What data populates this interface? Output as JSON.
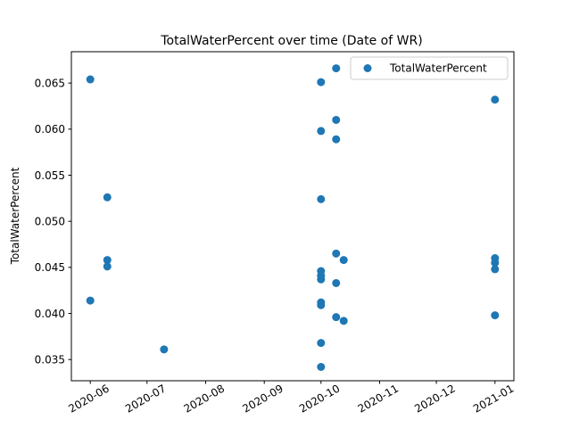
{
  "chart_data": {
    "type": "scatter",
    "title": "TotalWaterPercent over time (Date of WR)",
    "xlabel": "",
    "ylabel": "TotalWaterPercent",
    "xlim": [
      "2020-05-22",
      "2021-01-11"
    ],
    "ylim": [
      0.0327,
      0.0684
    ],
    "x_ticks": [
      "2020-06",
      "2020-07",
      "2020-08",
      "2020-09",
      "2020-10",
      "2020-11",
      "2020-12",
      "2021-01"
    ],
    "y_ticks": [
      0.035,
      0.04,
      0.045,
      0.05,
      0.055,
      0.06,
      0.065
    ],
    "y_tick_labels": [
      "0.035",
      "0.040",
      "0.045",
      "0.050",
      "0.055",
      "0.060",
      "0.065"
    ],
    "legend": {
      "position": "top-right",
      "entries": [
        "TotalWaterPercent"
      ]
    },
    "grid": false,
    "series": [
      {
        "name": "TotalWaterPercent",
        "color": "#1f77b4",
        "points": [
          {
            "x": "2020-06-01",
            "y": 0.0654
          },
          {
            "x": "2020-06-01",
            "y": 0.0414
          },
          {
            "x": "2020-06-10",
            "y": 0.0526
          },
          {
            "x": "2020-06-10",
            "y": 0.0458
          },
          {
            "x": "2020-06-10",
            "y": 0.0451
          },
          {
            "x": "2020-07-10",
            "y": 0.0361
          },
          {
            "x": "2020-10-01",
            "y": 0.0651
          },
          {
            "x": "2020-10-01",
            "y": 0.0598
          },
          {
            "x": "2020-10-01",
            "y": 0.0524
          },
          {
            "x": "2020-10-01",
            "y": 0.0446
          },
          {
            "x": "2020-10-01",
            "y": 0.0441
          },
          {
            "x": "2020-10-01",
            "y": 0.0437
          },
          {
            "x": "2020-10-01",
            "y": 0.0412
          },
          {
            "x": "2020-10-01",
            "y": 0.0409
          },
          {
            "x": "2020-10-01",
            "y": 0.0368
          },
          {
            "x": "2020-10-01",
            "y": 0.0342
          },
          {
            "x": "2020-10-09",
            "y": 0.0666
          },
          {
            "x": "2020-10-09",
            "y": 0.061
          },
          {
            "x": "2020-10-09",
            "y": 0.0589
          },
          {
            "x": "2020-10-09",
            "y": 0.0465
          },
          {
            "x": "2020-10-09",
            "y": 0.0433
          },
          {
            "x": "2020-10-09",
            "y": 0.0396
          },
          {
            "x": "2020-10-13",
            "y": 0.0458
          },
          {
            "x": "2020-10-13",
            "y": 0.0392
          },
          {
            "x": "2021-01-01",
            "y": 0.0632
          },
          {
            "x": "2021-01-01",
            "y": 0.046
          },
          {
            "x": "2021-01-01",
            "y": 0.0455
          },
          {
            "x": "2021-01-01",
            "y": 0.0448
          },
          {
            "x": "2021-01-01",
            "y": 0.0398
          }
        ]
      }
    ]
  }
}
